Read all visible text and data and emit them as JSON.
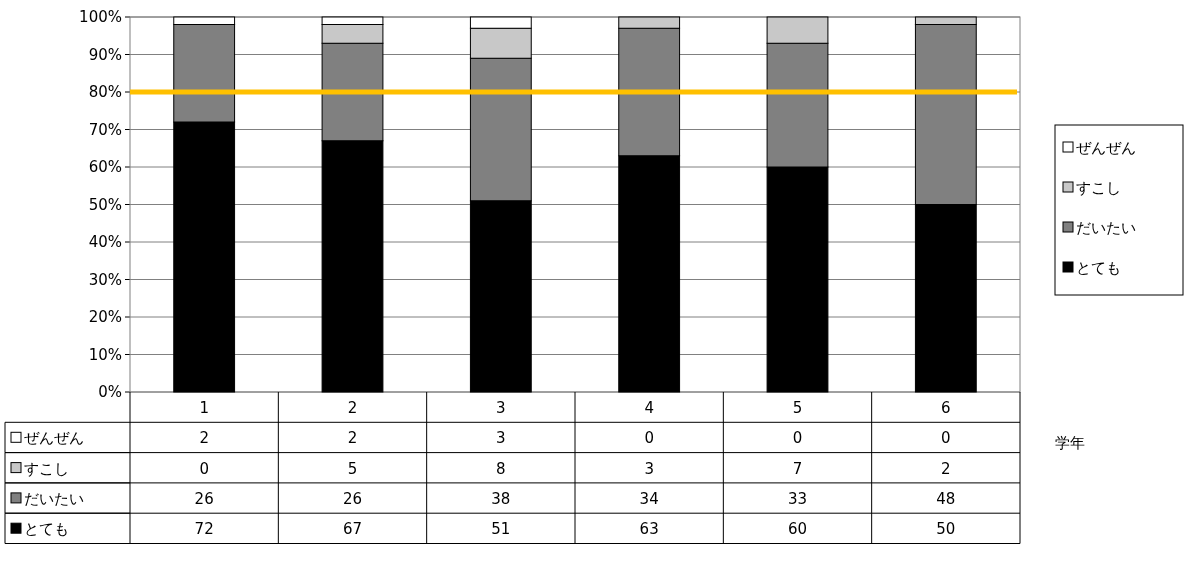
{
  "chart_data": {
    "type": "bar",
    "stacked": true,
    "xlabel": "学年",
    "categories": [
      "1",
      "2",
      "3",
      "4",
      "5",
      "6"
    ],
    "series": [
      {
        "name": "とても",
        "color": "#000000",
        "values": [
          72,
          67,
          51,
          63,
          60,
          50
        ]
      },
      {
        "name": "だいたい",
        "color": "#808080",
        "values": [
          26,
          26,
          38,
          34,
          33,
          48
        ]
      },
      {
        "name": "すこし",
        "color": "#c8c8c8",
        "values": [
          0,
          5,
          8,
          3,
          7,
          2
        ]
      },
      {
        "name": "ぜんぜん",
        "color": "#ffffff",
        "values": [
          2,
          2,
          3,
          0,
          0,
          0
        ]
      }
    ],
    "ylim": [
      0,
      100
    ],
    "yticks": [
      {
        "value": 0,
        "label": "0%"
      },
      {
        "value": 10,
        "label": "10%"
      },
      {
        "value": 20,
        "label": "20%"
      },
      {
        "value": 30,
        "label": "30%"
      },
      {
        "value": 40,
        "label": "40%"
      },
      {
        "value": 50,
        "label": "50%"
      },
      {
        "value": 60,
        "label": "60%"
      },
      {
        "value": 70,
        "label": "70%"
      },
      {
        "value": 80,
        "label": "80%"
      },
      {
        "value": 90,
        "label": "90%"
      },
      {
        "value": 100,
        "label": "100%"
      }
    ],
    "grid": "y",
    "legend": "right",
    "data_labels": true,
    "ref_lines": [
      {
        "axis": "y",
        "value": 80,
        "color": "#ffc000"
      }
    ]
  }
}
